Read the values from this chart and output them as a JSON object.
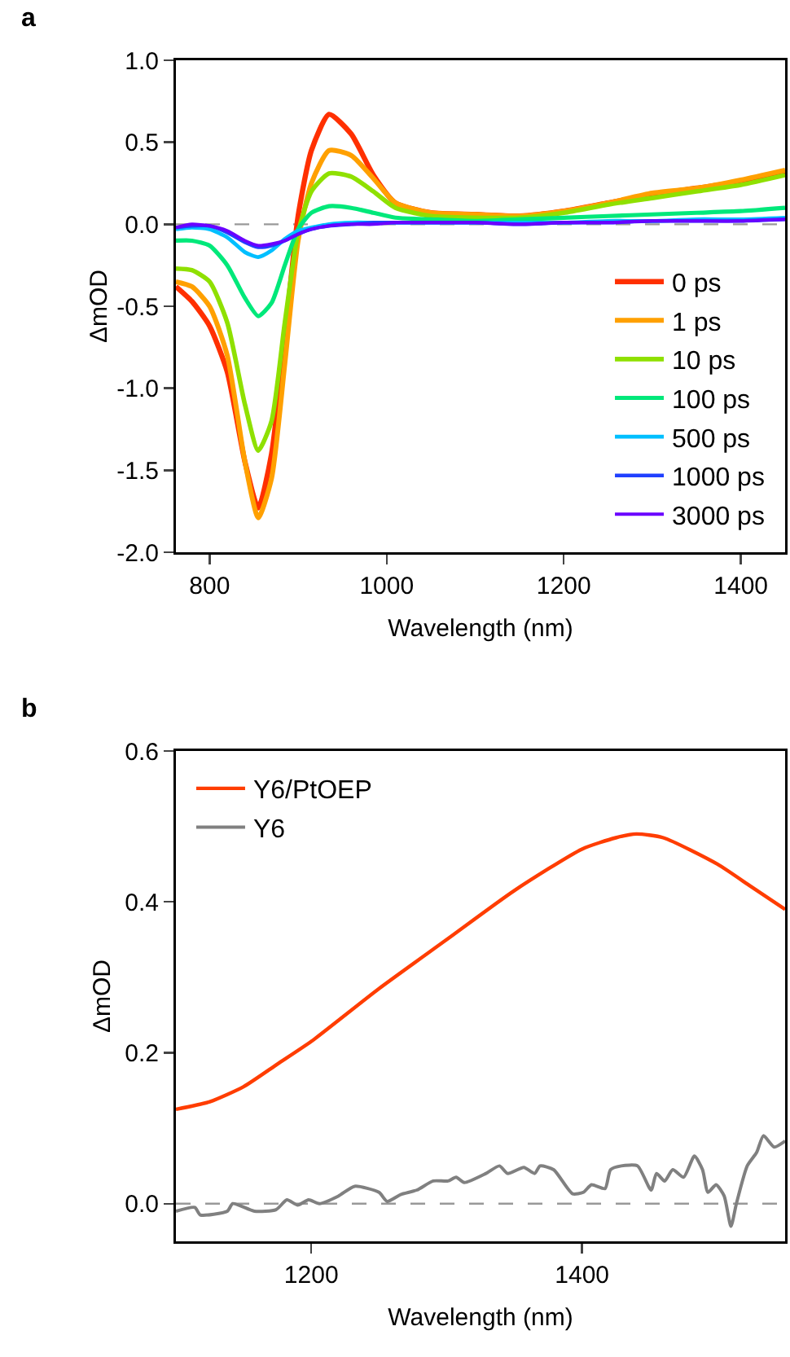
{
  "chart_data": [
    {
      "type": "line",
      "annotations": [
        "a"
      ],
      "xlabel": "Wavelength (nm)",
      "ylabel": "ΔmOD",
      "xlim": [
        762,
        1450
      ],
      "xticks": [
        800,
        1000,
        1200,
        1400
      ],
      "ylim": [
        -2.0,
        1.0
      ],
      "yticks": [
        {
          "value": -2,
          "label": "-2.0"
        },
        {
          "value": -1.5,
          "label": "-1.5"
        },
        {
          "value": -1,
          "label": "-1.0"
        },
        {
          "value": -0.5,
          "label": "-0.5"
        },
        {
          "value": 0,
          "label": "0.0"
        },
        {
          "value": 0.5,
          "label": "0.5"
        },
        {
          "value": 1,
          "label": "1.0"
        }
      ],
      "grid": false,
      "legend": "bottom right",
      "marker": "none",
      "line_style": "solid",
      "x": [
        762,
        780,
        800,
        820,
        840,
        855,
        870,
        885,
        900,
        915,
        935,
        960,
        985,
        1010,
        1050,
        1100,
        1150,
        1200,
        1250,
        1300,
        1350,
        1400,
        1450
      ],
      "ref_lines": [
        {
          "axis": "y",
          "value": 0,
          "color": "#999999",
          "line_style": "dashed"
        }
      ],
      "series": [
        {
          "name": "0 ps",
          "color": "#ff3000",
          "values": [
            -0.38,
            -0.47,
            -0.62,
            -0.9,
            -1.45,
            -1.73,
            -1.4,
            -0.7,
            0.05,
            0.45,
            0.67,
            0.55,
            0.3,
            0.13,
            0.07,
            0.06,
            0.05,
            0.08,
            0.13,
            0.18,
            0.22,
            0.26,
            0.32
          ]
        },
        {
          "name": "1 ps",
          "color": "#ffa000",
          "values": [
            -0.35,
            -0.38,
            -0.5,
            -0.8,
            -1.45,
            -1.79,
            -1.55,
            -0.85,
            -0.1,
            0.25,
            0.45,
            0.42,
            0.28,
            0.13,
            0.07,
            0.06,
            0.05,
            0.08,
            0.13,
            0.19,
            0.22,
            0.27,
            0.33
          ]
        },
        {
          "name": "10 ps",
          "color": "#8fe000",
          "values": [
            -0.27,
            -0.28,
            -0.35,
            -0.6,
            -1.1,
            -1.38,
            -1.2,
            -0.6,
            -0.05,
            0.2,
            0.31,
            0.29,
            0.2,
            0.1,
            0.05,
            0.04,
            0.04,
            0.07,
            0.12,
            0.16,
            0.2,
            0.24,
            0.3
          ]
        },
        {
          "name": "100 ps",
          "color": "#00e87a",
          "values": [
            -0.1,
            -0.1,
            -0.13,
            -0.25,
            -0.45,
            -0.56,
            -0.48,
            -0.25,
            -0.03,
            0.07,
            0.11,
            0.1,
            0.07,
            0.04,
            0.03,
            0.02,
            0.03,
            0.04,
            0.05,
            0.06,
            0.07,
            0.08,
            0.1
          ]
        },
        {
          "name": "500 ps",
          "color": "#00bfff",
          "values": [
            -0.03,
            -0.02,
            -0.03,
            -0.08,
            -0.17,
            -0.2,
            -0.16,
            -0.09,
            -0.04,
            -0.02,
            0,
            0.01,
            0.01,
            0.01,
            0.01,
            0.01,
            0.01,
            0.01,
            0.02,
            0.02,
            0.03,
            0.03,
            0.04
          ]
        },
        {
          "name": "1000 ps",
          "color": "#2040ff",
          "values": [
            -0.02,
            -0.01,
            -0.01,
            -0.05,
            -0.11,
            -0.14,
            -0.13,
            -0.1,
            -0.06,
            -0.03,
            -0.01,
            0,
            0.01,
            0.01,
            0.01,
            0.01,
            0,
            0.01,
            0.01,
            0.02,
            0.02,
            0.02,
            0.03
          ]
        },
        {
          "name": "3000 ps",
          "color": "#6a00ff",
          "values": [
            -0.02,
            0,
            -0.01,
            -0.04,
            -0.1,
            -0.13,
            -0.12,
            -0.1,
            -0.06,
            -0.03,
            -0.01,
            0,
            0,
            0.01,
            0.01,
            0.01,
            0,
            0.01,
            0.01,
            0.02,
            0.02,
            0.02,
            0.03
          ]
        }
      ]
    },
    {
      "type": "line",
      "annotations": [
        "b"
      ],
      "xlabel": "Wavelength (nm)",
      "ylabel": "ΔmOD",
      "xlim": [
        1100,
        1550
      ],
      "xticks": [
        1200,
        1400
      ],
      "ylim": [
        -0.05,
        0.6
      ],
      "yticks": [
        {
          "value": 0,
          "label": "0.0"
        },
        {
          "value": 0.2,
          "label": "0.2"
        },
        {
          "value": 0.4,
          "label": "0.4"
        },
        {
          "value": 0.6,
          "label": "0.6"
        }
      ],
      "grid": false,
      "legend": "top left",
      "marker": "none",
      "line_style": "solid",
      "ref_lines": [
        {
          "axis": "y",
          "value": 0,
          "color": "#999999",
          "line_style": "dashed"
        }
      ],
      "series": [
        {
          "name": "Y6/PtOEP",
          "color": "#ff3d00",
          "x": [
            1100,
            1125,
            1150,
            1175,
            1200,
            1250,
            1300,
            1350,
            1400,
            1425,
            1440,
            1460,
            1500,
            1525,
            1550
          ],
          "values": [
            0.125,
            0.135,
            0.155,
            0.185,
            0.215,
            0.285,
            0.35,
            0.415,
            0.47,
            0.485,
            0.49,
            0.485,
            0.45,
            0.42,
            0.39
          ]
        },
        {
          "name": "Y6",
          "color": "#808080",
          "x": [
            1100,
            1114,
            1118,
            1138,
            1142,
            1158,
            1174,
            1182,
            1190,
            1198,
            1206,
            1220,
            1232,
            1250,
            1256,
            1266,
            1278,
            1290,
            1301,
            1307,
            1313,
            1329,
            1339,
            1345,
            1357,
            1365,
            1369,
            1379,
            1393,
            1401,
            1407,
            1417,
            1421,
            1429,
            1441,
            1451,
            1455,
            1461,
            1467,
            1475,
            1483,
            1489,
            1493,
            1499,
            1505,
            1510,
            1514,
            1522,
            1529,
            1534,
            1542,
            1550
          ],
          "values": [
            -0.01,
            -0.005,
            -0.015,
            -0.01,
            0,
            -0.01,
            -0.008,
            0.005,
            -0.002,
            0.005,
            0,
            0.01,
            0.023,
            0.015,
            0.003,
            0.012,
            0.018,
            0.03,
            0.03,
            0.035,
            0.028,
            0.04,
            0.05,
            0.04,
            0.048,
            0.04,
            0.05,
            0.045,
            0.013,
            0.015,
            0.025,
            0.02,
            0.045,
            0.05,
            0.05,
            0.018,
            0.04,
            0.03,
            0.045,
            0.035,
            0.063,
            0.045,
            0.015,
            0.025,
            0.01,
            -0.03,
            0,
            0.05,
            0.068,
            0.09,
            0.075,
            0.083
          ]
        }
      ]
    }
  ]
}
